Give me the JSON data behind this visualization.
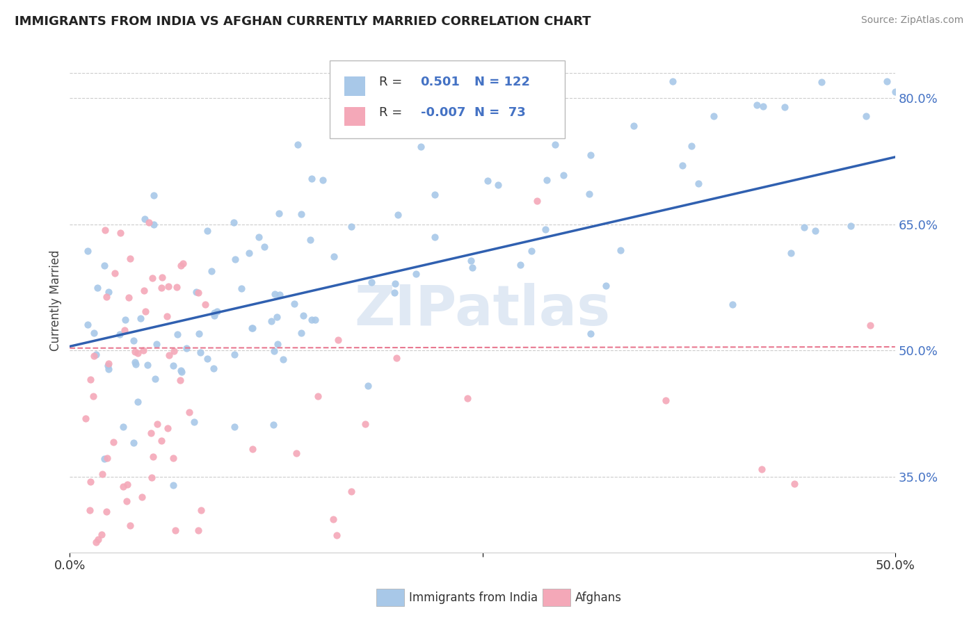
{
  "title": "IMMIGRANTS FROM INDIA VS AFGHAN CURRENTLY MARRIED CORRELATION CHART",
  "source_text": "Source: ZipAtlas.com",
  "ylabel": "Currently Married",
  "legend_label1": "Immigrants from India",
  "legend_label2": "Afghans",
  "watermark": "ZIPatlas",
  "india_color": "#a8c8e8",
  "afghan_color": "#f4a8b8",
  "india_line_color": "#3060b0",
  "afghan_line_color": "#e87890",
  "background_color": "#ffffff",
  "grid_color": "#cccccc",
  "ytick_color": "#4472c4",
  "title_color": "#222222",
  "source_color": "#888888",
  "legend_text_color": "#333333",
  "legend_value_color": "#4472c4"
}
